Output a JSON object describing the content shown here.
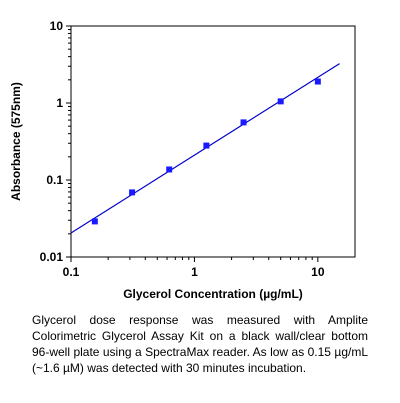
{
  "chart_data": {
    "type": "scatter",
    "xlabel": "Glycerol Concentration (µg/mL)",
    "ylabel": "Absorbance (575nm)",
    "x_scale": "log",
    "y_scale": "log",
    "xlim": [
      0.1,
      20
    ],
    "ylim": [
      0.01,
      10
    ],
    "x_ticks": [
      0.1,
      1,
      10
    ],
    "x_tick_labels": [
      "0.1",
      "1",
      "10"
    ],
    "y_ticks": [
      0.01,
      0.1,
      1,
      10
    ],
    "y_tick_labels": [
      "0.01",
      "0.1",
      "1",
      "10"
    ],
    "grid": false,
    "series": [
      {
        "marker": "square",
        "color": "#1a1aff",
        "x": [
          0.156,
          0.3125,
          0.625,
          1.25,
          2.5,
          5,
          10
        ],
        "y": [
          0.029,
          0.069,
          0.137,
          0.28,
          0.56,
          1.05,
          1.9
        ]
      }
    ],
    "fit_line": {
      "color": "#0000cc",
      "x": [
        0.1,
        15
      ],
      "y": [
        0.0205,
        3.25
      ]
    }
  },
  "caption": "Glycerol dose response was measured with Amplite Colorimetric Glycerol Assay Kit on a black wall/clear bottom 96-well plate using a SpectraMax reader. As low as 0.15 µg/mL (~1.6 µM) was detected with 30 minutes incubation."
}
